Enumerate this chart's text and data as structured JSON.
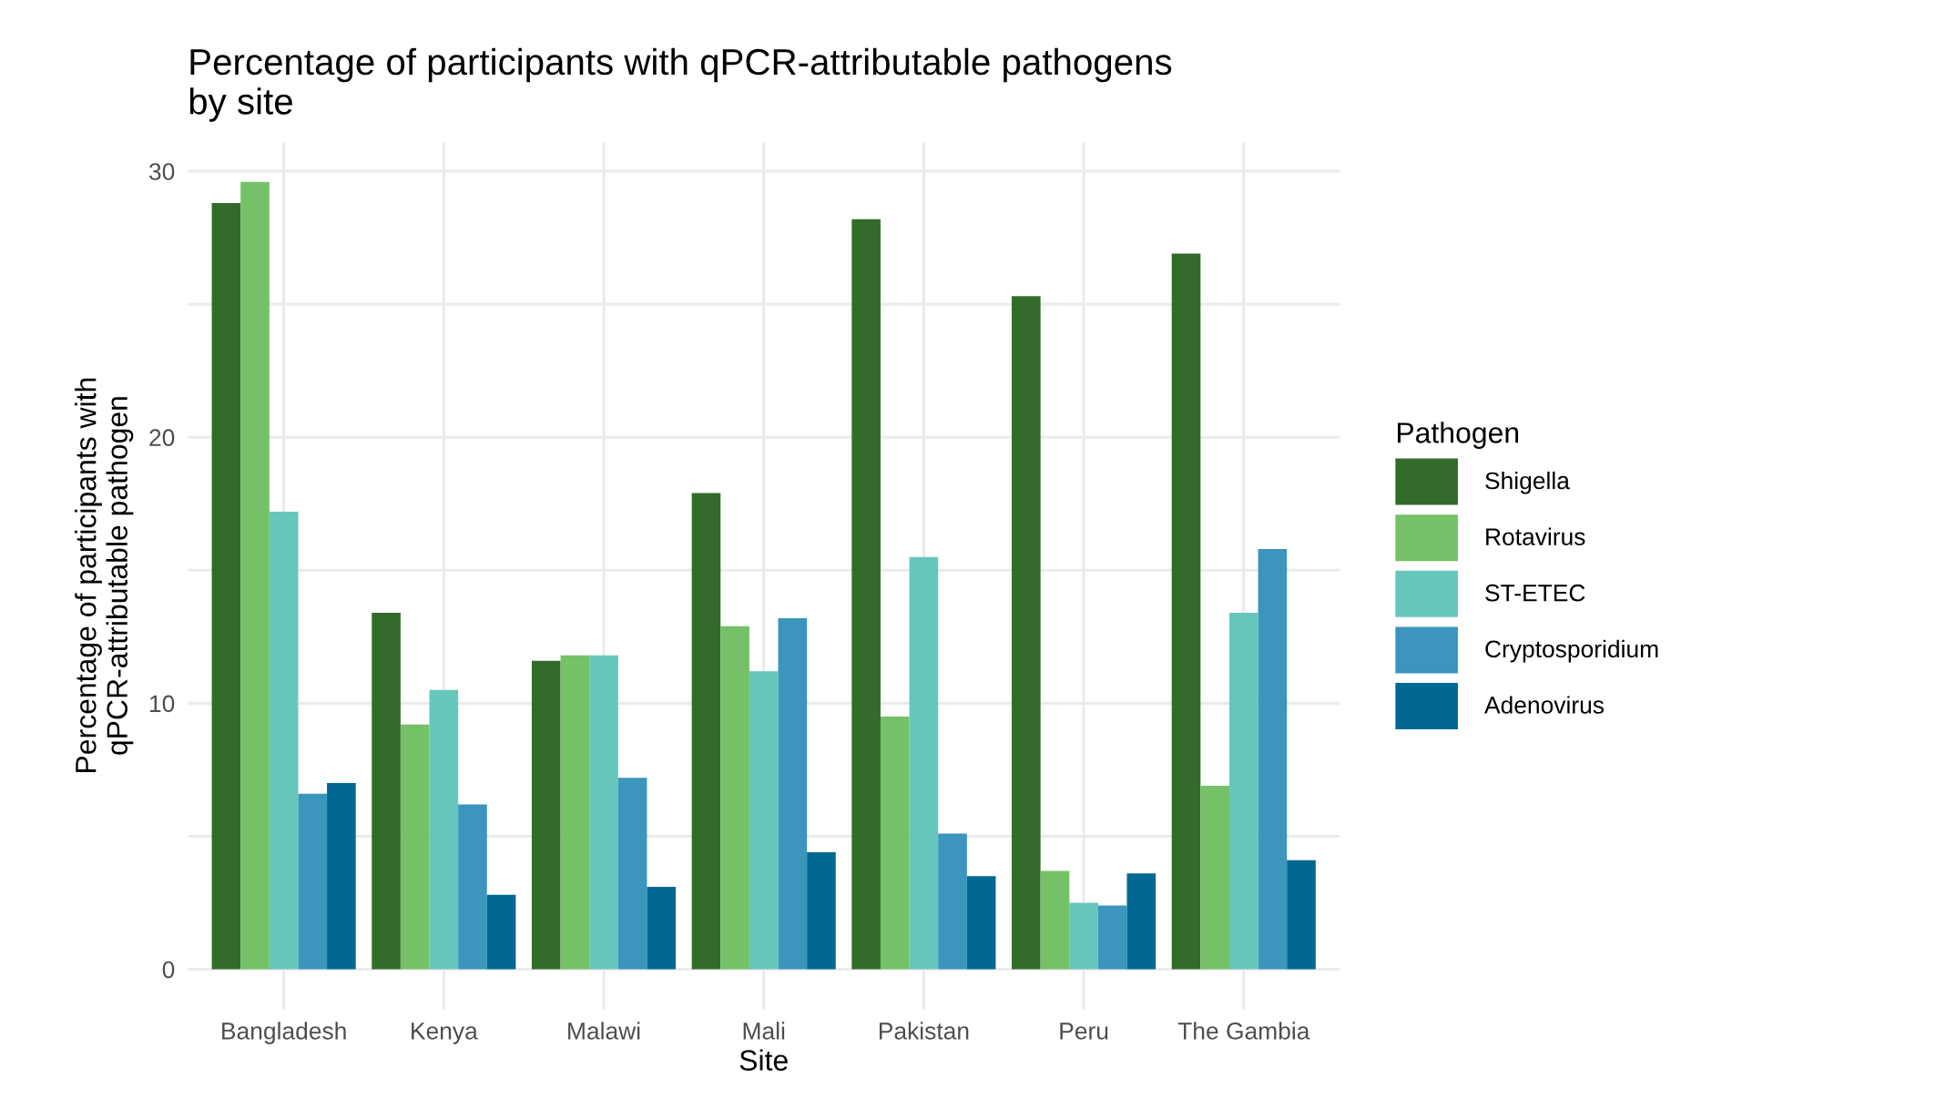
{
  "chart_data": {
    "type": "bar",
    "title": "Percentage of participants with qPCR-attributable pathogens\nby site",
    "xlabel": "Site",
    "ylabel": "Percentage of participants with\nqPCR-attributable pathogen",
    "legend_title": "Pathogen",
    "categories": [
      "Bangladesh",
      "Kenya",
      "Malawi",
      "Mali",
      "Pakistan",
      "Peru",
      "The Gambia"
    ],
    "series": [
      {
        "name": "Shigella",
        "color": "#336b2b",
        "values": [
          28.8,
          13.4,
          11.6,
          17.9,
          28.2,
          25.3,
          26.9
        ]
      },
      {
        "name": "Rotavirus",
        "color": "#74c167",
        "values": [
          29.6,
          9.2,
          11.8,
          12.9,
          9.5,
          3.7,
          6.9
        ]
      },
      {
        "name": "ST-ETEC",
        "color": "#67c6bc",
        "values": [
          17.2,
          10.5,
          11.8,
          11.2,
          15.5,
          2.5,
          13.4
        ]
      },
      {
        "name": "Cryptosporidium",
        "color": "#3b95bd",
        "values": [
          6.6,
          6.2,
          7.2,
          13.2,
          5.1,
          2.4,
          15.8
        ]
      },
      {
        "name": "Adenovirus",
        "color": "#006893",
        "values": [
          7.0,
          2.8,
          3.1,
          4.4,
          3.5,
          3.6,
          4.1
        ]
      }
    ],
    "ylim": [
      -1.5,
      31.1
    ],
    "yticks": [
      0,
      {
        "value": 5,
        "label": null
      },
      10,
      {
        "value": 15,
        "label": null
      },
      20,
      {
        "value": 25,
        "label": null
      },
      30
    ],
    "grid": true,
    "legend": "right"
  }
}
